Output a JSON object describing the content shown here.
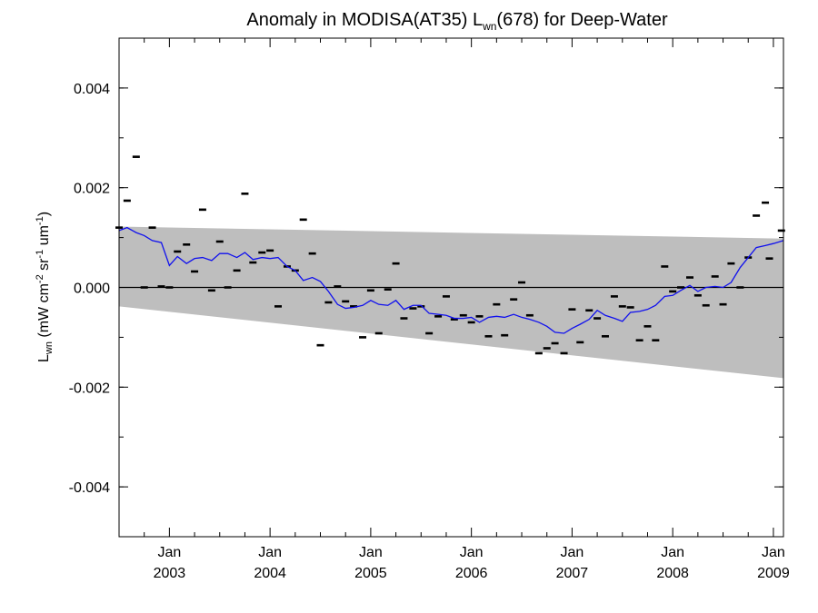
{
  "chart_data": {
    "type": "line",
    "title": {
      "main": "Anomaly in MODISA(AT35) L",
      "sub": "wn",
      "rest": "(678) for Deep-Water"
    },
    "ylabel": {
      "L": "L",
      "sub": "wn",
      "units_a": " (mW cm",
      "exp1": "-2",
      "units_b": " sr",
      "exp2": "-1",
      "units_c": " um",
      "exp3": "-1",
      "units_d": ")"
    },
    "ylim": [
      -0.005,
      0.005
    ],
    "xlim": [
      2002.5,
      2009.1
    ],
    "yticks": [
      {
        "v": 0.004,
        "label": "0.004"
      },
      {
        "v": 0.002,
        "label": "0.002"
      },
      {
        "v": 0.0,
        "label": "0.000"
      },
      {
        "v": -0.002,
        "label": "-0.002"
      },
      {
        "v": -0.004,
        "label": "-0.004"
      }
    ],
    "xticks": [
      {
        "x": 2003.0,
        "month": "Jan",
        "year": "2003"
      },
      {
        "x": 2004.0,
        "month": "Jan",
        "year": "2004"
      },
      {
        "x": 2005.0,
        "month": "Jan",
        "year": "2005"
      },
      {
        "x": 2006.0,
        "month": "Jan",
        "year": "2006"
      },
      {
        "x": 2007.0,
        "month": "Jan",
        "year": "2007"
      },
      {
        "x": 2008.0,
        "month": "Jan",
        "year": "2008"
      },
      {
        "x": 2009.0,
        "month": "Jan",
        "year": "2009"
      }
    ],
    "band": {
      "color": "#bebebe",
      "upper": [
        [
          2002.5,
          0.00122
        ],
        [
          2009.1,
          0.00098
        ]
      ],
      "lower": [
        [
          2002.5,
          -0.00038
        ],
        [
          2009.1,
          -0.00182
        ]
      ]
    },
    "zero_line": true,
    "colors": {
      "running_mean": "#1010ee",
      "points": "#000000"
    },
    "series": [
      {
        "kind": "points",
        "points": [
          [
            2002.5,
            0.0012
          ],
          [
            2002.58,
            0.00174
          ],
          [
            2002.67,
            0.00262
          ],
          [
            2002.75,
            0.0
          ],
          [
            2002.83,
            0.0012
          ],
          [
            2002.92,
            2e-05
          ],
          [
            2003.0,
            0.0
          ],
          [
            2003.08,
            0.00072
          ],
          [
            2003.17,
            0.00086
          ],
          [
            2003.25,
            0.00032
          ],
          [
            2003.33,
            0.00156
          ],
          [
            2003.42,
            -6e-05
          ],
          [
            2003.5,
            0.00092
          ],
          [
            2003.58,
            0.0
          ],
          [
            2003.67,
            0.00034
          ],
          [
            2003.75,
            0.00188
          ],
          [
            2003.83,
            0.0005
          ],
          [
            2003.92,
            0.0007
          ],
          [
            2004.0,
            0.00074
          ],
          [
            2004.08,
            -0.00038
          ],
          [
            2004.17,
            0.00042
          ],
          [
            2004.25,
            0.00034
          ],
          [
            2004.33,
            0.00136
          ],
          [
            2004.42,
            0.00068
          ],
          [
            2004.5,
            -0.00116
          ],
          [
            2004.58,
            -0.0003
          ],
          [
            2004.67,
            2e-05
          ],
          [
            2004.75,
            -0.00028
          ],
          [
            2004.83,
            -0.00038
          ],
          [
            2004.92,
            -0.001
          ],
          [
            2005.0,
            -6e-05
          ],
          [
            2005.08,
            -0.00092
          ],
          [
            2005.17,
            -4e-05
          ],
          [
            2005.25,
            0.00048
          ],
          [
            2005.33,
            -0.00062
          ],
          [
            2005.42,
            -0.00042
          ],
          [
            2005.5,
            -0.00038
          ],
          [
            2005.58,
            -0.00092
          ],
          [
            2005.67,
            -0.00058
          ],
          [
            2005.75,
            -0.00018
          ],
          [
            2005.83,
            -0.00064
          ],
          [
            2005.92,
            -0.00056
          ],
          [
            2006.0,
            -0.0007
          ],
          [
            2006.08,
            -0.00058
          ],
          [
            2006.17,
            -0.00098
          ],
          [
            2006.25,
            -0.00034
          ],
          [
            2006.33,
            -0.00096
          ],
          [
            2006.42,
            -0.00024
          ],
          [
            2006.5,
            0.0001
          ],
          [
            2006.58,
            -0.00056
          ],
          [
            2006.67,
            -0.00132
          ],
          [
            2006.75,
            -0.00122
          ],
          [
            2006.83,
            -0.00112
          ],
          [
            2006.92,
            -0.00132
          ],
          [
            2007.0,
            -0.00044
          ],
          [
            2007.08,
            -0.0011
          ],
          [
            2007.17,
            -0.00046
          ],
          [
            2007.25,
            -0.00062
          ],
          [
            2007.33,
            -0.00098
          ],
          [
            2007.42,
            -0.00018
          ],
          [
            2007.5,
            -0.00038
          ],
          [
            2007.58,
            -0.0004
          ],
          [
            2007.67,
            -0.00106
          ],
          [
            2007.75,
            -0.00078
          ],
          [
            2007.83,
            -0.00106
          ],
          [
            2007.92,
            0.00042
          ],
          [
            2008.0,
            -8e-05
          ],
          [
            2008.08,
            0.0
          ],
          [
            2008.17,
            0.0002
          ],
          [
            2008.25,
            -0.00016
          ],
          [
            2008.33,
            -0.00036
          ],
          [
            2008.42,
            0.00022
          ],
          [
            2008.5,
            -0.00034
          ],
          [
            2008.58,
            0.00048
          ],
          [
            2008.67,
            0.0
          ],
          [
            2008.75,
            0.0006
          ],
          [
            2008.83,
            0.00144
          ],
          [
            2008.92,
            0.0017
          ],
          [
            2008.96,
            0.00058
          ],
          [
            2009.08,
            0.00114
          ]
        ]
      },
      {
        "kind": "line",
        "points": [
          [
            2002.5,
            0.00114
          ],
          [
            2002.58,
            0.0012
          ],
          [
            2002.67,
            0.0011
          ],
          [
            2002.75,
            0.00104
          ],
          [
            2002.83,
            0.00094
          ],
          [
            2002.92,
            0.0009
          ],
          [
            2003.0,
            0.00044
          ],
          [
            2003.08,
            0.00062
          ],
          [
            2003.17,
            0.00048
          ],
          [
            2003.25,
            0.00058
          ],
          [
            2003.33,
            0.0006
          ],
          [
            2003.42,
            0.00054
          ],
          [
            2003.5,
            0.00068
          ],
          [
            2003.58,
            0.00068
          ],
          [
            2003.67,
            0.0006
          ],
          [
            2003.75,
            0.0007
          ],
          [
            2003.83,
            0.00056
          ],
          [
            2003.92,
            0.0006
          ],
          [
            2004.0,
            0.00058
          ],
          [
            2004.08,
            0.0006
          ],
          [
            2004.17,
            0.00042
          ],
          [
            2004.25,
            0.00034
          ],
          [
            2004.33,
            0.00014
          ],
          [
            2004.42,
            0.0002
          ],
          [
            2004.5,
            0.00012
          ],
          [
            2004.58,
            -8e-05
          ],
          [
            2004.67,
            -0.00034
          ],
          [
            2004.75,
            -0.00042
          ],
          [
            2004.83,
            -0.0004
          ],
          [
            2004.92,
            -0.00036
          ],
          [
            2005.0,
            -0.00026
          ],
          [
            2005.08,
            -0.00034
          ],
          [
            2005.17,
            -0.00036
          ],
          [
            2005.25,
            -0.00026
          ],
          [
            2005.33,
            -0.00044
          ],
          [
            2005.42,
            -0.00036
          ],
          [
            2005.5,
            -0.00036
          ],
          [
            2005.58,
            -0.00052
          ],
          [
            2005.67,
            -0.00054
          ],
          [
            2005.75,
            -0.00056
          ],
          [
            2005.83,
            -0.00062
          ],
          [
            2005.92,
            -0.00062
          ],
          [
            2006.0,
            -0.0006
          ],
          [
            2006.08,
            -0.0007
          ],
          [
            2006.17,
            -0.0006
          ],
          [
            2006.25,
            -0.00058
          ],
          [
            2006.33,
            -0.0006
          ],
          [
            2006.42,
            -0.00054
          ],
          [
            2006.5,
            -0.0006
          ],
          [
            2006.58,
            -0.00064
          ],
          [
            2006.67,
            -0.0007
          ],
          [
            2006.75,
            -0.00078
          ],
          [
            2006.83,
            -0.0009
          ],
          [
            2006.92,
            -0.00092
          ],
          [
            2007.0,
            -0.00082
          ],
          [
            2007.08,
            -0.00074
          ],
          [
            2007.17,
            -0.00064
          ],
          [
            2007.25,
            -0.00046
          ],
          [
            2007.33,
            -0.00056
          ],
          [
            2007.42,
            -0.00062
          ],
          [
            2007.5,
            -0.00068
          ],
          [
            2007.58,
            -0.0005
          ],
          [
            2007.67,
            -0.00048
          ],
          [
            2007.75,
            -0.00044
          ],
          [
            2007.83,
            -0.00036
          ],
          [
            2007.92,
            -0.00018
          ],
          [
            2008.0,
            -0.00016
          ],
          [
            2008.08,
            -6e-05
          ],
          [
            2008.17,
            4e-05
          ],
          [
            2008.25,
            -8e-05
          ],
          [
            2008.33,
            0.0
          ],
          [
            2008.42,
            2e-05
          ],
          [
            2008.5,
            0.0
          ],
          [
            2008.58,
            0.0001
          ],
          [
            2008.67,
            0.0004
          ],
          [
            2008.75,
            0.0006
          ],
          [
            2008.83,
            0.0008
          ],
          [
            2008.92,
            0.00084
          ],
          [
            2009.0,
            0.00088
          ],
          [
            2009.1,
            0.00094
          ]
        ]
      }
    ]
  }
}
